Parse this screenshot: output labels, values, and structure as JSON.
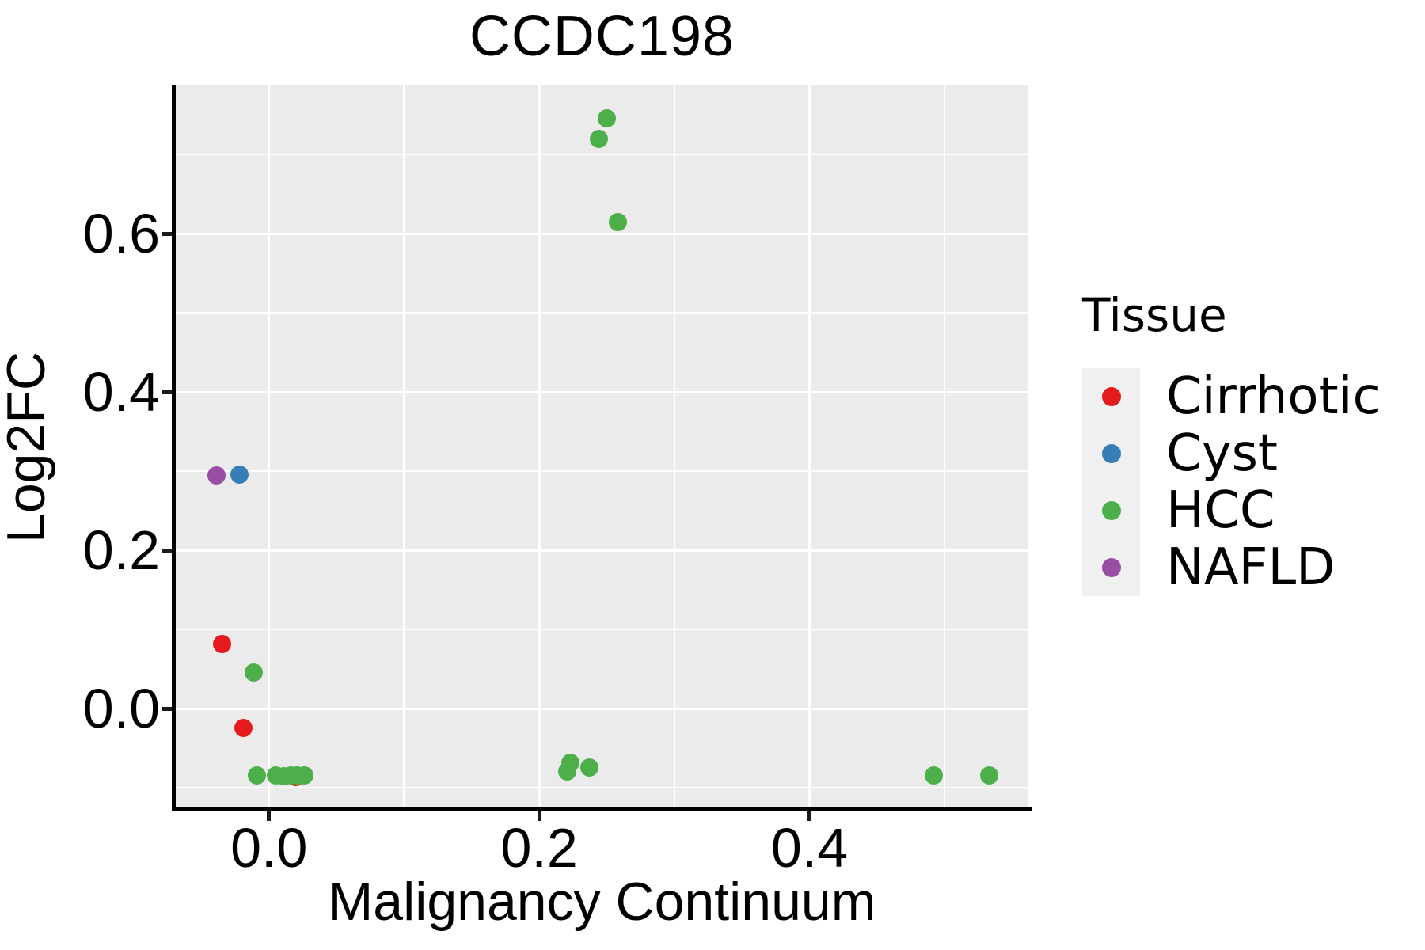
{
  "title": "CCDC198",
  "axes": {
    "x": {
      "label": "Malignancy Continuum",
      "tick_labels": [
        "0.0",
        "0.2",
        "0.4"
      ],
      "tick_values": [
        0.0,
        0.2,
        0.4
      ],
      "minor_values": [
        -0.1,
        0.1,
        0.3,
        0.5
      ],
      "range": [
        -0.069,
        0.562
      ]
    },
    "y": {
      "label": "Log2FC",
      "tick_labels": [
        "0.0",
        "0.2",
        "0.4",
        "0.6"
      ],
      "tick_values": [
        0.0,
        0.2,
        0.4,
        0.6
      ],
      "minor_values": [
        -0.1,
        0.1,
        0.3,
        0.5,
        0.7
      ],
      "range": [
        -0.124,
        0.788
      ]
    }
  },
  "legend": {
    "title": "Tissue",
    "entries": [
      {
        "label": "Cirrhotic",
        "color": "#E41A1C"
      },
      {
        "label": "Cyst",
        "color": "#377EB8"
      },
      {
        "label": "HCC",
        "color": "#4DAF4A"
      },
      {
        "label": "NAFLD",
        "color": "#984EA3"
      }
    ]
  },
  "style_colors": {
    "panel_background": "#EBEBEB",
    "gridline": "#FFFFFF",
    "axis_line": "#000000",
    "legend_key_background": "#F0F0F0"
  },
  "chart_data": {
    "type": "scatter",
    "title": "CCDC198",
    "xlabel": "Malignancy Continuum",
    "ylabel": "Log2FC",
    "xlim": [
      -0.069,
      0.562
    ],
    "ylim": [
      -0.124,
      0.788
    ],
    "grid": true,
    "legend_position": "right",
    "series": [
      {
        "name": "Cirrhotic",
        "color": "#E41A1C",
        "points": [
          [
            -0.035,
            0.082
          ],
          [
            -0.019,
            -0.024
          ],
          [
            0.02,
            -0.086
          ]
        ]
      },
      {
        "name": "Cyst",
        "color": "#377EB8",
        "points": [
          [
            -0.022,
            0.296
          ]
        ]
      },
      {
        "name": "NAFLD",
        "color": "#984EA3",
        "points": [
          [
            -0.039,
            0.295
          ]
        ]
      },
      {
        "name": "HCC",
        "color": "#4DAF4A",
        "points": [
          [
            0.25,
            0.746
          ],
          [
            0.244,
            0.72
          ],
          [
            0.258,
            0.615
          ],
          [
            -0.011,
            0.046
          ],
          [
            -0.009,
            -0.084
          ],
          [
            0.005,
            -0.084
          ],
          [
            0.011,
            -0.085
          ],
          [
            0.016,
            -0.084
          ],
          [
            0.021,
            -0.084
          ],
          [
            0.026,
            -0.084
          ],
          [
            0.223,
            -0.068
          ],
          [
            0.221,
            -0.079
          ],
          [
            0.237,
            -0.074
          ],
          [
            0.492,
            -0.084
          ],
          [
            0.533,
            -0.084
          ]
        ]
      }
    ]
  }
}
